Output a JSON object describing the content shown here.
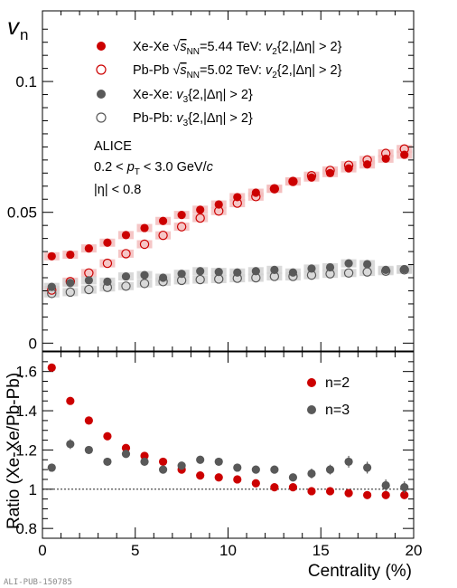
{
  "colors": {
    "red": "#cc0000",
    "grey": "#595959",
    "red_sys": "#f3bcbc",
    "grey_sys": "#d2d2d2"
  },
  "chart_data": [
    {
      "type": "scatter",
      "ylabel": "v",
      "ylabel_sub": "n",
      "xlim": [
        0,
        20
      ],
      "ylim": [
        -0.003,
        0.127
      ],
      "ytick_values": [
        0,
        0.05,
        0.1
      ],
      "ytick_labels": [
        "0",
        "0.05",
        "0.1"
      ],
      "grid": false,
      "legend_placement": "top-left",
      "legend": [
        {
          "pre": "Xe-Xe ",
          "sqrt": "s",
          "sub": "NN",
          "post": "=5.44 TeV: ",
          "v": "v",
          "vsub": "2",
          "cond": "{2,|Δη| > 2}",
          "style": "filled-red"
        },
        {
          "pre": "Pb-Pb ",
          "sqrt": "s",
          "sub": "NN",
          "post": "=5.02 TeV: ",
          "v": "v",
          "vsub": "2",
          "cond": "{2,|Δη| > 2}",
          "style": "open-red"
        },
        {
          "pre": "Xe-Xe: ",
          "sqrt": "",
          "sub": "",
          "post": "",
          "v": "v",
          "vsub": "3",
          "cond": "{2,|Δη| > 2}",
          "style": "filled-grey"
        },
        {
          "pre": "Pb-Pb: ",
          "sqrt": "",
          "sub": "",
          "post": "",
          "v": "v",
          "vsub": "3",
          "cond": "{2,|Δη| > 2}",
          "style": "open-grey"
        }
      ],
      "notes": {
        "experiment": "ALICE",
        "pt_pre": "0.2 < ",
        "pt_var": "p",
        "pt_sub": "T",
        "pt_post": " < 3.0 GeV/",
        "pt_unit": "c",
        "eta": "|η| < 0.8"
      },
      "x": [
        0.5,
        1.5,
        2.5,
        3.5,
        4.5,
        5.5,
        6.5,
        7.5,
        8.5,
        9.5,
        10.5,
        11.5,
        12.5,
        13.5,
        14.5,
        15.5,
        16.5,
        17.5,
        18.5,
        19.5
      ],
      "series": [
        {
          "name": "Xe-Xe v2",
          "style": "filled-red",
          "values": [
            0.0332,
            0.0338,
            0.0362,
            0.0384,
            0.0413,
            0.044,
            0.0467,
            0.049,
            0.051,
            0.053,
            0.0558,
            0.0575,
            0.059,
            0.0618,
            0.0633,
            0.065,
            0.0668,
            0.0683,
            0.0705,
            0.072
          ]
        },
        {
          "name": "Pb-Pb v2",
          "style": "open-red",
          "values": [
            0.0203,
            0.0235,
            0.0268,
            0.0305,
            0.0342,
            0.0378,
            0.0412,
            0.0445,
            0.0478,
            0.0505,
            0.0535,
            0.056,
            0.059,
            0.0618,
            0.064,
            0.066,
            0.068,
            0.07,
            0.0725,
            0.0742
          ]
        },
        {
          "name": "Xe-Xe v3",
          "style": "filled-grey",
          "values": [
            0.0215,
            0.023,
            0.024,
            0.0235,
            0.0255,
            0.026,
            0.025,
            0.0265,
            0.0275,
            0.0272,
            0.027,
            0.0275,
            0.028,
            0.027,
            0.0285,
            0.029,
            0.0305,
            0.0302,
            0.028,
            0.0283
          ]
        },
        {
          "name": "Pb-Pb v3",
          "style": "open-grey",
          "values": [
            0.019,
            0.0195,
            0.0205,
            0.0213,
            0.0218,
            0.0228,
            0.0235,
            0.024,
            0.0243,
            0.0245,
            0.0248,
            0.025,
            0.0255,
            0.0255,
            0.026,
            0.0265,
            0.0268,
            0.0272,
            0.0275,
            0.028
          ]
        }
      ]
    },
    {
      "type": "scatter",
      "xlabel": "Centrality (%)",
      "ylabel": "Ratio (Xe-Xe/Pb-Pb)",
      "xlim": [
        0,
        20
      ],
      "ylim": [
        0.75,
        1.7
      ],
      "xtick_values": [
        0,
        5,
        10,
        15,
        20
      ],
      "xtick_labels": [
        "0",
        "5",
        "10",
        "15",
        "20"
      ],
      "ytick_values": [
        0.8,
        1,
        1.2,
        1.4,
        1.6
      ],
      "ytick_labels": [
        "0.8",
        "1",
        "1.2",
        "1.4",
        "1.6"
      ],
      "reference_line": 1,
      "legend": [
        {
          "label": "n=2",
          "style": "filled-red"
        },
        {
          "label": "n=3",
          "style": "filled-grey"
        }
      ],
      "x": [
        0.5,
        1.5,
        2.5,
        3.5,
        4.5,
        5.5,
        6.5,
        7.5,
        8.5,
        9.5,
        10.5,
        11.5,
        12.5,
        13.5,
        14.5,
        15.5,
        16.5,
        17.5,
        18.5,
        19.5
      ],
      "series": [
        {
          "name": "n=2",
          "style": "filled-red",
          "values": [
            1.62,
            1.45,
            1.35,
            1.27,
            1.21,
            1.17,
            1.14,
            1.1,
            1.07,
            1.06,
            1.05,
            1.03,
            1.01,
            1.01,
            0.99,
            0.99,
            0.98,
            0.97,
            0.97,
            0.97
          ],
          "errors": [
            0,
            0,
            0,
            0,
            0,
            0,
            0,
            0,
            0,
            0,
            0,
            0,
            0,
            0,
            0,
            0,
            0,
            0,
            0,
            0
          ]
        },
        {
          "name": "n=3",
          "style": "filled-grey",
          "values": [
            1.11,
            1.23,
            1.2,
            1.14,
            1.18,
            1.14,
            1.1,
            1.12,
            1.15,
            1.14,
            1.11,
            1.1,
            1.1,
            1.06,
            1.08,
            1.1,
            1.14,
            1.11,
            1.02,
            1.01
          ],
          "errors": [
            0.02,
            0.025,
            0.02,
            0.02,
            0.02,
            0.02,
            0.02,
            0.02,
            0.02,
            0.02,
            0.02,
            0.02,
            0.02,
            0.02,
            0.025,
            0.025,
            0.03,
            0.03,
            0.03,
            0.03
          ]
        }
      ]
    }
  ],
  "watermark": "ALI-PUB-150785"
}
